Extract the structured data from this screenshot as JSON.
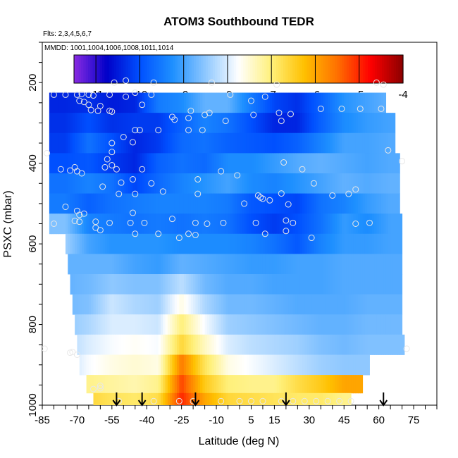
{
  "chart_data": {
    "type": "heatmap",
    "title": "ATOM3 Southbound TEDR",
    "annotations": [
      "Flts: 2,3,4,5,6,7",
      "MMDD: 1001,1004,1006,1008,1011,1014"
    ],
    "xlabel": "Latitude (deg N)",
    "ylabel": "PSXC (mbar)",
    "xlim": [
      -85,
      85
    ],
    "ylim": [
      1000,
      100
    ],
    "x_ticks": [
      -85,
      -70,
      -55,
      -40,
      -25,
      -10,
      5,
      15,
      30,
      45,
      60,
      75
    ],
    "y_ticks": [
      200,
      400,
      600,
      800,
      1000
    ],
    "colorbar": {
      "range": [
        -11.5,
        -4
      ],
      "ticks": [
        -11,
        -10,
        -9,
        -8,
        -7,
        -6,
        -5,
        -4
      ],
      "colors": [
        "#8a2be2",
        "#0000c8",
        "#0050ff",
        "#1e90ff",
        "#8fc8ff",
        "#ffffff",
        "#fff07a",
        "#ffc000",
        "#ff7000",
        "#ff0000",
        "#8b0000"
      ]
    },
    "pressure_levels": [
      200,
      250,
      300,
      350,
      400,
      450,
      500,
      550,
      600,
      650,
      700,
      750,
      800,
      850,
      900,
      950,
      990
    ],
    "lat_start": [
      -54,
      -82,
      -82,
      -82,
      -82,
      -82,
      -82,
      -82,
      -75,
      -74,
      -73,
      -72,
      -71,
      -70,
      -69,
      -66,
      -63
    ],
    "lat_end": [
      63,
      63,
      67,
      67,
      69,
      69,
      69,
      70,
      70,
      70,
      70,
      70,
      70,
      71,
      56,
      53,
      48
    ],
    "anchor_lats": [
      -85,
      -75,
      -65,
      -55,
      -45,
      -35,
      -25,
      -15,
      -5,
      5,
      15,
      25,
      35,
      45,
      55,
      65,
      75
    ],
    "values": [
      [
        -10.2,
        -10.2,
        -10.4,
        -10.0,
        -9.6,
        -9.3,
        -9.4,
        -9.1,
        -8.7,
        -8.6,
        -9.0,
        -9.2,
        -9.0,
        -8.8,
        -8.4,
        -8.4,
        -8.4
      ],
      [
        -10.4,
        -10.4,
        -10.3,
        -10.5,
        -10.4,
        -9.5,
        -9.3,
        -8.8,
        -8.8,
        -9.5,
        -10.1,
        -10.3,
        -9.8,
        -9.2,
        -9.0,
        -8.8,
        -8.8
      ],
      [
        -10.3,
        -10.3,
        -10.0,
        -10.3,
        -10.2,
        -10.2,
        -9.8,
        -9.4,
        -9.6,
        -10.0,
        -10.4,
        -10.4,
        -9.8,
        -9.3,
        -9.1,
        -9.0,
        -9.0
      ],
      [
        -10.2,
        -10.2,
        -9.6,
        -10.0,
        -10.4,
        -10.2,
        -9.7,
        -9.6,
        -9.8,
        -9.9,
        -10.0,
        -9.8,
        -9.4,
        -9.0,
        -9.0,
        -8.9,
        -8.9
      ],
      [
        -10.0,
        -10.0,
        -9.9,
        -10.2,
        -10.4,
        -9.8,
        -9.6,
        -9.7,
        -9.3,
        -9.3,
        -9.1,
        -8.9,
        -8.8,
        -8.9,
        -9.0,
        -8.9,
        -8.9
      ],
      [
        -9.6,
        -9.6,
        -9.4,
        -9.6,
        -10.1,
        -9.7,
        -9.4,
        -9.2,
        -9.0,
        -9.3,
        -9.4,
        -9.2,
        -9.0,
        -8.8,
        -8.9,
        -8.8,
        -8.8
      ],
      [
        -9.5,
        -9.5,
        -9.8,
        -9.6,
        -9.5,
        -9.4,
        -9.4,
        -9.4,
        -9.5,
        -9.9,
        -10.0,
        -10.1,
        -9.6,
        -9.4,
        -9.1,
        -8.9,
        -8.9
      ],
      [
        -8.6,
        -8.6,
        -9.4,
        -9.5,
        -9.6,
        -9.5,
        -9.6,
        -9.5,
        -9.6,
        -10.0,
        -10.2,
        -10.0,
        -9.6,
        -9.1,
        -9.3,
        -9.0,
        -9.0
      ],
      [
        -8.4,
        -8.4,
        -9.0,
        -9.2,
        -9.2,
        -9.2,
        -9.3,
        -9.3,
        -9.3,
        -9.4,
        -9.6,
        -9.9,
        -9.4,
        -9.1,
        -9.1,
        -9.0,
        -9.0
      ],
      [
        -8.8,
        -8.8,
        -8.8,
        -8.8,
        -9.0,
        -9.1,
        -8.8,
        -8.9,
        -9.0,
        -9.1,
        -9.1,
        -9.0,
        -9.0,
        -8.9,
        -8.9,
        -8.9,
        -8.9
      ],
      [
        -8.8,
        -8.8,
        -8.7,
        -8.5,
        -8.6,
        -8.6,
        -8.2,
        -8.7,
        -8.9,
        -8.9,
        -9.0,
        -9.0,
        -9.0,
        -8.9,
        -8.9,
        -8.9,
        -8.9
      ],
      [
        -8.7,
        -8.7,
        -8.6,
        -8.1,
        -8.3,
        -8.4,
        -7.6,
        -8.3,
        -8.7,
        -8.7,
        -8.8,
        -8.9,
        -8.9,
        -8.9,
        -8.8,
        -8.8,
        -8.8
      ],
      [
        -8.5,
        -8.5,
        -8.3,
        -8.0,
        -8.0,
        -8.1,
        -7.0,
        -7.8,
        -8.4,
        -8.5,
        -8.6,
        -8.7,
        -8.8,
        -8.8,
        -8.7,
        -8.7,
        -8.7
      ],
      [
        -8.3,
        -8.3,
        -8.0,
        -7.8,
        -7.7,
        -7.8,
        -6.6,
        -7.4,
        -8.0,
        -8.2,
        -8.3,
        -8.4,
        -8.6,
        -8.7,
        -8.6,
        -8.6,
        -8.6
      ],
      [
        -8.2,
        -8.2,
        -7.8,
        -7.6,
        -7.5,
        -7.6,
        -5.6,
        -6.8,
        -7.6,
        -7.8,
        -8.0,
        -8.2,
        -8.4,
        -8.5,
        -8.5,
        -8.5,
        -8.5
      ],
      [
        -7.4,
        -7.4,
        -7.1,
        -7.2,
        -7.3,
        -7.1,
        -5.2,
        -6.4,
        -7.0,
        -7.1,
        -7.1,
        -6.7,
        -6.4,
        -6.0,
        -6.0,
        -6.0,
        -6.0
      ],
      [
        -7.0,
        -7.0,
        -6.6,
        -6.8,
        -6.9,
        -6.7,
        -5.0,
        -6.0,
        -6.6,
        -6.7,
        -6.8,
        -6.9,
        -6.9,
        -7.1,
        -7.1,
        -7.1,
        -7.1
      ]
    ],
    "points": [
      [
        -54,
        200
      ],
      [
        -49,
        195
      ],
      [
        -37,
        200
      ],
      [
        -12,
        200
      ],
      [
        16,
        205
      ],
      [
        59,
        200
      ],
      [
        62,
        205
      ],
      [
        -80,
        230
      ],
      [
        -75,
        230
      ],
      [
        -70,
        230
      ],
      [
        -68,
        228
      ],
      [
        -65,
        230
      ],
      [
        -63,
        232
      ],
      [
        -56,
        230
      ],
      [
        -49,
        235
      ],
      [
        -45,
        225
      ],
      [
        -38,
        230
      ],
      [
        -4,
        230
      ],
      [
        5,
        245
      ],
      [
        11,
        235
      ],
      [
        -69,
        245
      ],
      [
        -67,
        248
      ],
      [
        -65,
        255
      ],
      [
        -60,
        258
      ],
      [
        -42,
        255
      ],
      [
        -56,
        270
      ],
      [
        -55,
        272
      ],
      [
        -64,
        268
      ],
      [
        -61,
        270
      ],
      [
        -21,
        270
      ],
      [
        -15,
        280
      ],
      [
        -13,
        275
      ],
      [
        6,
        280
      ],
      [
        17,
        275
      ],
      [
        22,
        278
      ],
      [
        35,
        265
      ],
      [
        44,
        265
      ],
      [
        52,
        265
      ],
      [
        61,
        265
      ],
      [
        -29,
        285
      ],
      [
        -28,
        292
      ],
      [
        -22,
        288
      ],
      [
        -6,
        295
      ],
      [
        18,
        295
      ],
      [
        -45,
        318
      ],
      [
        -43,
        318
      ],
      [
        -35,
        318
      ],
      [
        -22,
        318
      ],
      [
        -16,
        318
      ],
      [
        -55,
        350
      ],
      [
        -50,
        335
      ],
      [
        -46,
        348
      ],
      [
        -83,
        375
      ],
      [
        -55,
        372
      ],
      [
        64,
        368
      ],
      [
        -57,
        390
      ],
      [
        70,
        395
      ],
      [
        -77,
        415
      ],
      [
        -73,
        418
      ],
      [
        -70,
        420
      ],
      [
        -68,
        425
      ],
      [
        -71,
        410
      ],
      [
        -58,
        410
      ],
      [
        -55,
        405
      ],
      [
        -53,
        415
      ],
      [
        -42,
        415
      ],
      [
        -8,
        420
      ],
      [
        -1,
        430
      ],
      [
        19,
        398
      ],
      [
        27,
        415
      ],
      [
        -46,
        440
      ],
      [
        -51,
        448
      ],
      [
        -38,
        450
      ],
      [
        -33,
        470
      ],
      [
        -18,
        440
      ],
      [
        32,
        450
      ],
      [
        40,
        480
      ],
      [
        47,
        476
      ],
      [
        50,
        465
      ],
      [
        -59,
        458
      ],
      [
        -52,
        476
      ],
      [
        -45,
        476
      ],
      [
        -18,
        476
      ],
      [
        8,
        480
      ],
      [
        9,
        485
      ],
      [
        10,
        488
      ],
      [
        2,
        500
      ],
      [
        13,
        492
      ],
      [
        18,
        475
      ],
      [
        21,
        502
      ],
      [
        -75,
        508
      ],
      [
        -70,
        518
      ],
      [
        -69,
        528
      ],
      [
        -67,
        525
      ],
      [
        -46,
        523
      ],
      [
        -71,
        543
      ],
      [
        -69,
        545
      ],
      [
        -62,
        545
      ],
      [
        -56,
        548
      ],
      [
        -47,
        548
      ],
      [
        -41,
        548
      ],
      [
        -29,
        538
      ],
      [
        -19,
        548
      ],
      [
        -14,
        550
      ],
      [
        -7,
        548
      ],
      [
        7,
        548
      ],
      [
        20,
        542
      ],
      [
        23,
        548
      ],
      [
        50,
        550
      ],
      [
        56,
        548
      ],
      [
        -80,
        550
      ],
      [
        -62,
        560
      ],
      [
        -60,
        566
      ],
      [
        -45,
        575
      ],
      [
        -35,
        575
      ],
      [
        -22,
        575
      ],
      [
        -19,
        578
      ],
      [
        -26,
        585
      ],
      [
        11,
        575
      ],
      [
        20,
        568
      ],
      [
        31,
        585
      ],
      [
        -84,
        860
      ],
      [
        -72,
        868
      ],
      [
        -73,
        870
      ],
      [
        -70,
        875
      ],
      [
        72,
        860
      ],
      [
        -60,
        952
      ],
      [
        -60,
        958
      ],
      [
        -52,
        990
      ],
      [
        -37,
        990
      ],
      [
        -26,
        990
      ],
      [
        -20,
        990
      ],
      [
        -8,
        990
      ],
      [
        0,
        990
      ],
      [
        5,
        990
      ],
      [
        10,
        990
      ],
      [
        18,
        990
      ],
      [
        23,
        990
      ],
      [
        28,
        990
      ],
      [
        33,
        990
      ],
      [
        38,
        990
      ],
      [
        43,
        990
      ],
      [
        48,
        990
      ],
      [
        -63,
        960
      ]
    ],
    "flight_markers_lat": [
      -53,
      -42,
      -19,
      20,
      62
    ]
  }
}
